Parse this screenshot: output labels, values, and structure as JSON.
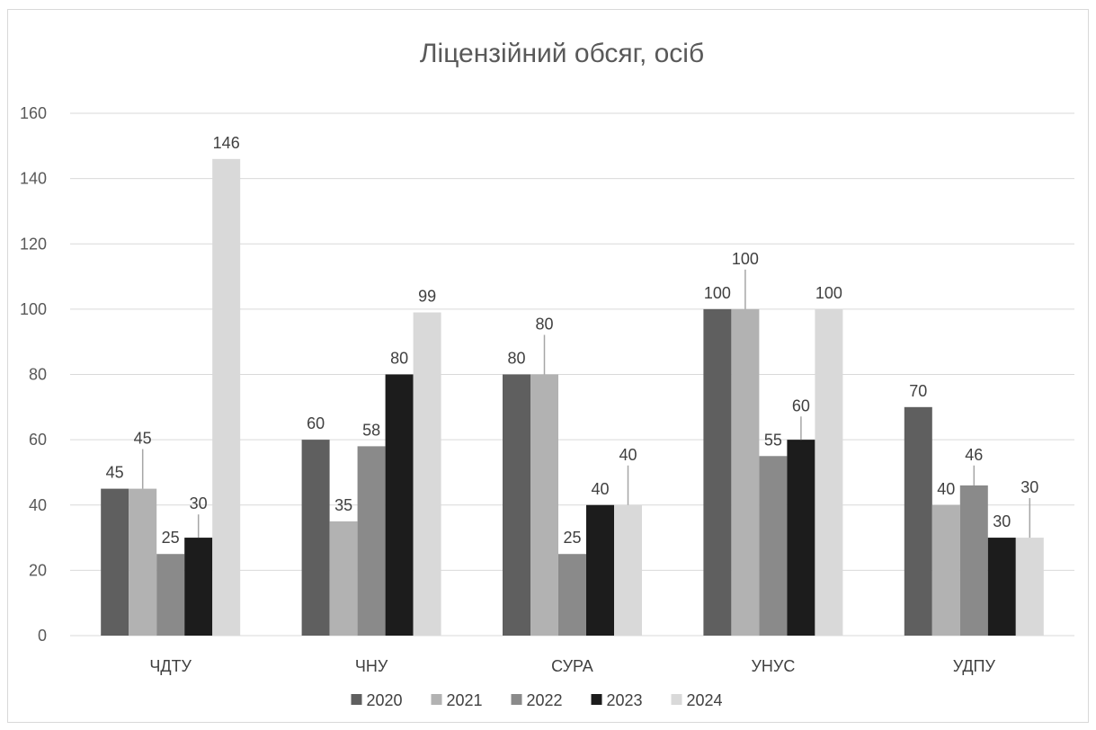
{
  "chart_data": {
    "type": "bar",
    "title": "Ліцензійний обсяг, осіб",
    "categories": [
      "ЧДТУ",
      "ЧНУ",
      "СУРА",
      "УНУС",
      "УДПУ"
    ],
    "series": [
      {
        "name": "2020",
        "color": "#5f5f5f",
        "values": [
          45,
          60,
          80,
          100,
          70
        ]
      },
      {
        "name": "2021",
        "color": "#b2b2b2",
        "values": [
          45,
          35,
          80,
          100,
          40
        ]
      },
      {
        "name": "2022",
        "color": "#8a8a8a",
        "values": [
          25,
          58,
          25,
          55,
          46
        ]
      },
      {
        "name": "2023",
        "color": "#1c1c1c",
        "values": [
          30,
          80,
          40,
          60,
          30
        ]
      },
      {
        "name": "2024",
        "color": "#d9d9d9",
        "values": [
          146,
          99,
          40,
          100,
          30
        ]
      }
    ],
    "ylim": [
      0,
      160
    ],
    "yticks": [
      0,
      20,
      40,
      60,
      80,
      100,
      120,
      140,
      160
    ],
    "grid": true,
    "legend_position": "bottom",
    "data_labels": true
  }
}
